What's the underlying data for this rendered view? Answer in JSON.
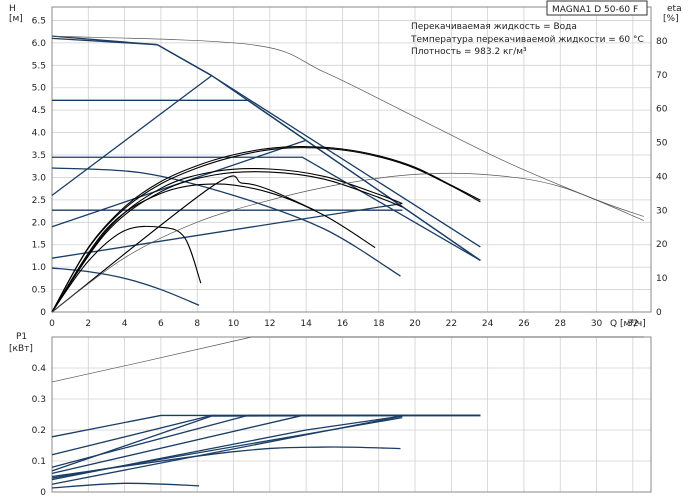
{
  "title": "MAGNA1 D 50-60 F",
  "info_lines": [
    "Перекачиваемая жидкость = Вода",
    "Температура перекачиваемой жидкости = 60 °C",
    "Плотность = 983.2 кг/м³"
  ],
  "colors": {
    "curve": "#1a3d66",
    "thin": "#555555",
    "bold": "#000000",
    "grid": "#d0d0d0"
  },
  "chart_data": [
    {
      "type": "line",
      "ylabel_name": "H",
      "ylabel_unit": "[м]",
      "y2label_name": "eta",
      "y2label_unit": "[%]",
      "xlabel": "Q [м³/ч]",
      "xlim": [
        0,
        33
      ],
      "ylim": [
        0,
        6.8
      ],
      "y2lim": [
        0,
        90
      ],
      "x_ticks": [
        "0",
        "2",
        "4",
        "6",
        "8",
        "10",
        "12",
        "14",
        "16",
        "18",
        "20",
        "22",
        "24",
        "26",
        "28",
        "30",
        "32"
      ],
      "y_ticks": [
        "0",
        "0.5",
        "1.0",
        "1.5",
        "2.0",
        "2.5",
        "3.0",
        "3.5",
        "4.0",
        "4.5",
        "5.0",
        "5.5",
        "6.0",
        "6.5"
      ],
      "y2_ticks": [
        "0",
        "10",
        "20",
        "30",
        "40",
        "50",
        "60",
        "70",
        "80"
      ],
      "grid": true,
      "series": [
        {
          "role": "head-max",
          "x": [
            0,
            5.8,
            8.8,
            23.6
          ],
          "y": [
            6.1,
            5.96,
            5.27,
            1.15
          ]
        },
        {
          "role": "head-max",
          "x": [
            0,
            5.8,
            8.8,
            23.6
          ],
          "y": [
            6.15,
            5.96,
            5.27,
            1.45
          ]
        },
        {
          "role": "head-cp",
          "x": [
            0,
            10.8,
            23.6
          ],
          "y": [
            4.72,
            4.72,
            1.15
          ]
        },
        {
          "role": "head-cp",
          "x": [
            0,
            13.8,
            23.6
          ],
          "y": [
            3.45,
            3.45,
            1.15
          ]
        },
        {
          "role": "head-cp",
          "x": [
            0,
            19.3
          ],
          "y": [
            2.27,
            2.27
          ]
        },
        {
          "role": "head-pp",
          "x": [
            0,
            8.8
          ],
          "y": [
            2.6,
            5.27
          ]
        },
        {
          "role": "head-pp",
          "x": [
            0,
            14.0
          ],
          "y": [
            1.9,
            3.83
          ]
        },
        {
          "role": "head-pp",
          "x": [
            0,
            19.3
          ],
          "y": [
            1.2,
            2.42
          ]
        },
        {
          "role": "head-min",
          "x": [
            0,
            5,
            10,
            15,
            19.2
          ],
          "y": [
            3.21,
            3.1,
            2.6,
            1.85,
            0.8
          ]
        },
        {
          "role": "head-min",
          "x": [
            0,
            2,
            4,
            6,
            8.1
          ],
          "y": [
            0.98,
            0.9,
            0.75,
            0.5,
            0.15
          ]
        },
        {
          "role": "head-max-thin",
          "x": [
            0,
            11,
            15,
            20,
            25,
            30,
            32.6
          ],
          "y": [
            6.15,
            5.96,
            5.35,
            4.35,
            3.35,
            2.5,
            2.13
          ]
        },
        {
          "role": "eta",
          "x": [
            0,
            2,
            4,
            6,
            8,
            10,
            12,
            14,
            16,
            18,
            20,
            22,
            23.6
          ],
          "y": [
            0,
            19,
            31,
            38.5,
            43.2,
            46.4,
            48.3,
            48.8,
            48.1,
            46.1,
            42.7,
            37.4,
            33
          ]
        },
        {
          "role": "eta",
          "x": [
            0,
            2,
            4,
            6,
            8,
            10,
            12,
            14,
            16,
            18,
            20,
            22,
            23.6
          ],
          "y": [
            0,
            18.8,
            30.5,
            37.8,
            42.5,
            45.8,
            47.9,
            48.5,
            47.8,
            45.8,
            42.4,
            37.2,
            32.5
          ]
        },
        {
          "role": "eta",
          "x": [
            0,
            3,
            6,
            9,
            12,
            15,
            18,
            19.3
          ],
          "y": [
            0,
            24,
            36.5,
            41.5,
            42.2,
            40,
            34.7,
            32
          ]
        },
        {
          "role": "eta",
          "x": [
            0,
            3,
            6,
            9,
            12,
            15,
            18,
            19.3
          ],
          "y": [
            0,
            23.5,
            35.5,
            40.5,
            41.3,
            39.2,
            33.8,
            31
          ]
        },
        {
          "role": "eta",
          "x": [
            0,
            3,
            6,
            9,
            12,
            15,
            17.8
          ],
          "y": [
            0,
            24.5,
            35,
            37.8,
            35.2,
            28.5,
            19
          ]
        },
        {
          "role": "eta",
          "x": [
            0,
            2,
            4,
            6,
            7.3,
            8.2
          ],
          "y": [
            0,
            15,
            24,
            25,
            22,
            8.5
          ]
        },
        {
          "role": "eta",
          "x": [
            0,
            8.8,
            10.5,
            12,
            14.5
          ],
          "y": [
            0,
            37,
            38,
            36,
            30
          ]
        },
        {
          "role": "eta-thin",
          "x": [
            0,
            4,
            8,
            12,
            16,
            20,
            24,
            28,
            32.6
          ],
          "y": [
            0,
            16,
            26.5,
            33,
            37.8,
            40.6,
            40.5,
            37,
            27
          ]
        }
      ]
    },
    {
      "type": "line",
      "ylabel_name": "P1",
      "ylabel_unit": "[кВт]",
      "xlim": [
        0,
        33
      ],
      "ylim": [
        0,
        0.5
      ],
      "y_ticks": [
        "0",
        "0.1",
        "0.2",
        "0.3",
        "0.4"
      ],
      "grid": true,
      "series": [
        {
          "role": "p1-max",
          "x": [
            0,
            6,
            23.6
          ],
          "y": [
            0.178,
            0.247,
            0.247
          ]
        },
        {
          "role": "p1-max",
          "x": [
            0,
            8.8,
            23.6
          ],
          "y": [
            0.12,
            0.247,
            0.247
          ]
        },
        {
          "role": "p1-cp",
          "x": [
            0,
            10.8,
            23.6
          ],
          "y": [
            0.08,
            0.247,
            0.247
          ]
        },
        {
          "role": "p1-cp",
          "x": [
            0,
            13.8,
            23.6
          ],
          "y": [
            0.06,
            0.247,
            0.247
          ]
        },
        {
          "role": "p1-cp",
          "x": [
            0,
            19.3
          ],
          "y": [
            0.045,
            0.24
          ]
        },
        {
          "role": "p1-pp",
          "x": [
            0,
            8.8,
            23.6
          ],
          "y": [
            0.068,
            0.245,
            0.247
          ]
        },
        {
          "role": "p1-pp",
          "x": [
            0,
            14.0,
            19.3
          ],
          "y": [
            0.04,
            0.2,
            0.245
          ]
        },
        {
          "role": "p1-pp",
          "x": [
            0,
            19.3
          ],
          "y": [
            0.025,
            0.245
          ]
        },
        {
          "role": "p1-min",
          "x": [
            0,
            10,
            15,
            19.2
          ],
          "y": [
            0.05,
            0.13,
            0.145,
            0.14
          ]
        },
        {
          "role": "p1-min",
          "x": [
            0,
            4,
            8.1
          ],
          "y": [
            0.013,
            0.028,
            0.02
          ]
        },
        {
          "role": "p1-max-thin",
          "x": [
            0,
            5,
            11,
            32.6
          ],
          "y": [
            0.355,
            0.42,
            0.5,
            0.5
          ]
        }
      ]
    }
  ]
}
